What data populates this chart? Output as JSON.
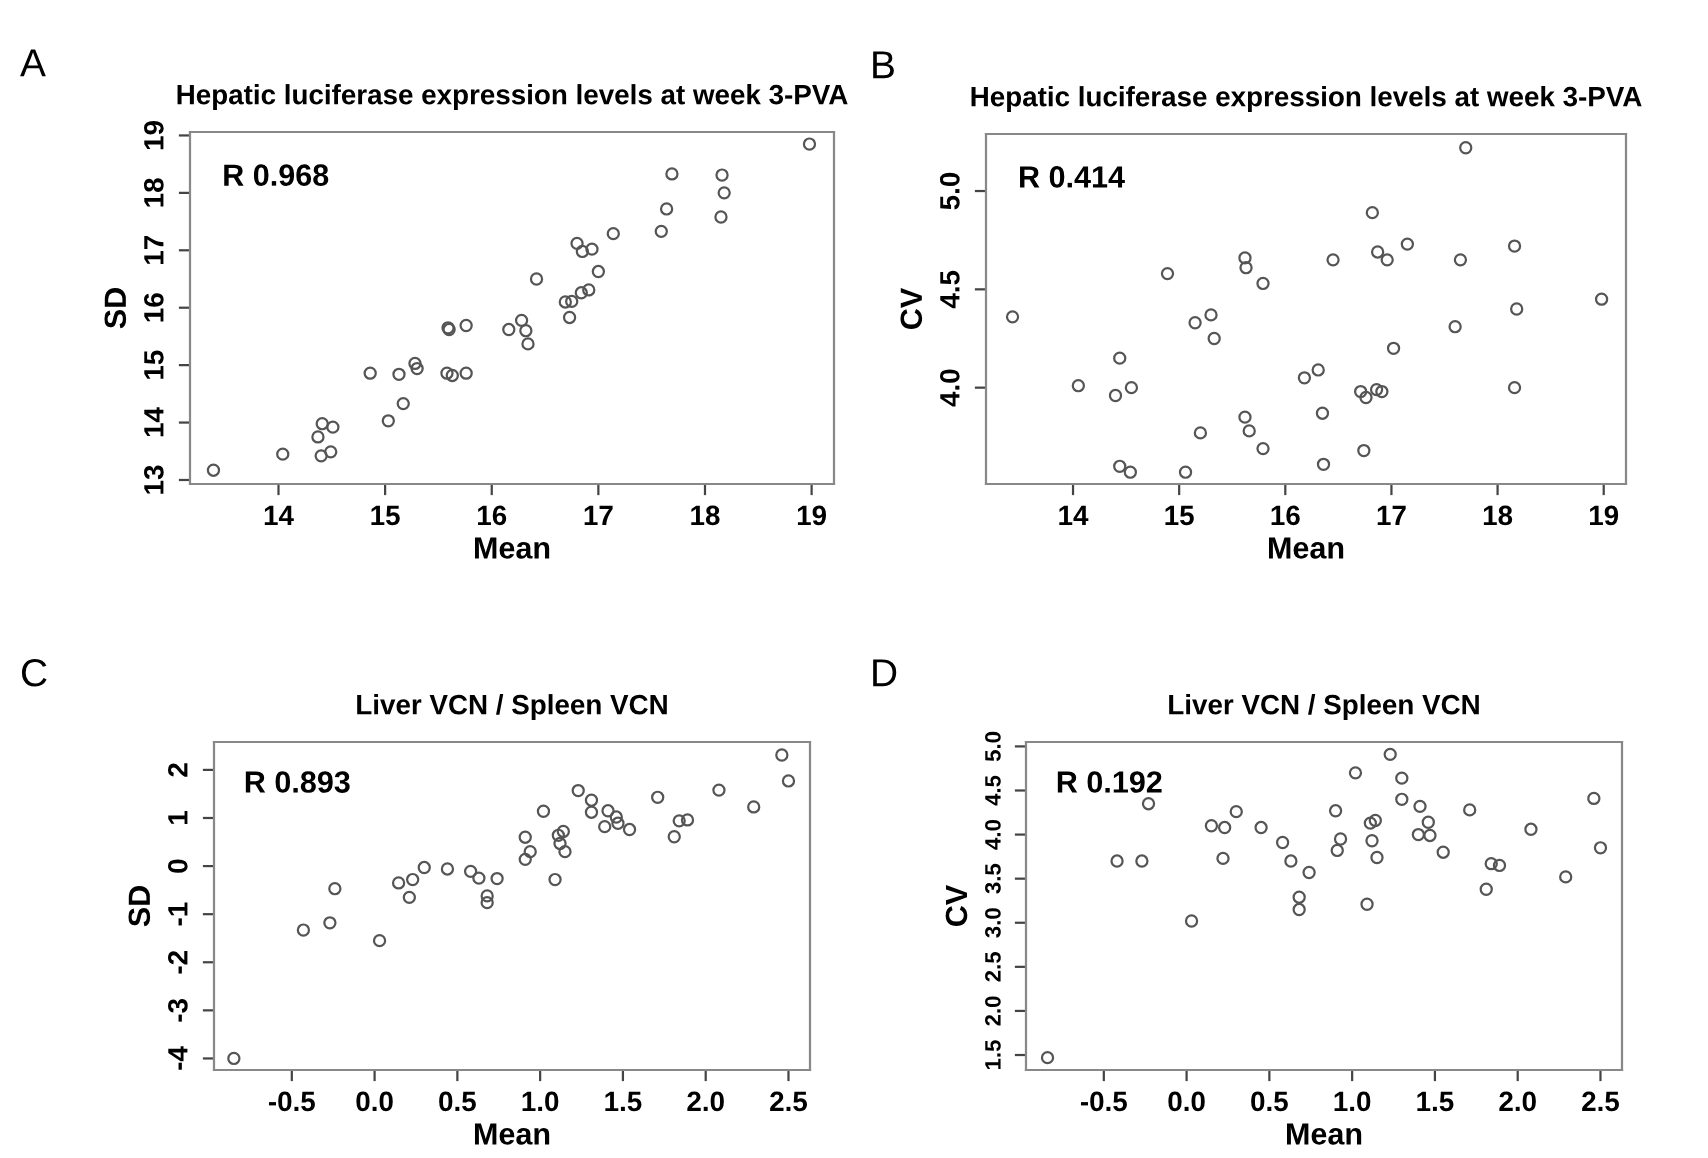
{
  "chart_data": [
    {
      "type": "scatter",
      "title": "Hepatic luciferase expression levels at week 3-PVA",
      "xlabel": "Mean",
      "ylabel": "SD",
      "annotations": [
        "A",
        "R 0.968"
      ],
      "marker": "circle",
      "grid": false,
      "xlim": [
        13.17,
        19.21
      ],
      "ylim": [
        12.93,
        19.06
      ],
      "xticks": [
        14,
        15,
        16,
        17,
        18,
        19
      ],
      "yticks": [
        13,
        14,
        15,
        16,
        17,
        18,
        19
      ],
      "series": [
        {
          "color": "#555555",
          "x": [
            13.39,
            14.04,
            14.37,
            14.41,
            14.51,
            14.4,
            14.49,
            14.86,
            15.03,
            15.13,
            15.17,
            15.28,
            15.3,
            15.59,
            15.6,
            15.58,
            15.63,
            15.76,
            15.76,
            16.16,
            16.28,
            16.32,
            16.34,
            16.42,
            16.69,
            16.75,
            16.73,
            16.8,
            16.85,
            16.94,
            16.84,
            16.91,
            17.0,
            17.14,
            17.59,
            17.64,
            17.69,
            18.16,
            18.18,
            18.15,
            18.98
          ],
          "values": [
            13.17,
            13.45,
            13.75,
            13.98,
            13.92,
            13.42,
            13.49,
            14.86,
            14.03,
            14.84,
            14.33,
            15.03,
            14.94,
            15.65,
            15.62,
            14.86,
            14.82,
            15.69,
            14.86,
            15.62,
            15.78,
            15.6,
            15.37,
            16.5,
            16.1,
            16.11,
            15.83,
            17.12,
            16.98,
            17.02,
            16.26,
            16.31,
            16.63,
            17.29,
            17.33,
            17.72,
            18.33,
            18.31,
            18.0,
            17.58,
            18.85
          ]
        }
      ]
    },
    {
      "type": "scatter",
      "title": "Hepatic luciferase expression levels at week 3-PVA",
      "xlabel": "Mean",
      "ylabel": "CV",
      "annotations": [
        "B",
        "R 0.414"
      ],
      "marker": "circle",
      "grid": false,
      "xlim": [
        13.18,
        19.21
      ],
      "ylim": [
        3.51,
        5.29
      ],
      "xticks": [
        14,
        15,
        16,
        17,
        18,
        19
      ],
      "yticks": [
        {
          "value": 4,
          "label": "4.0"
        },
        4.5,
        {
          "value": 5,
          "label": "5.0"
        }
      ],
      "series": [
        {
          "color": "#555555",
          "x": [
            13.43,
            14.05,
            14.4,
            14.44,
            14.55,
            14.44,
            14.54,
            14.89,
            15.06,
            15.15,
            15.2,
            15.3,
            15.33,
            15.62,
            15.63,
            15.62,
            15.66,
            15.79,
            15.79,
            16.18,
            16.31,
            16.35,
            16.36,
            16.45,
            16.71,
            16.76,
            16.74,
            16.82,
            16.87,
            16.96,
            16.86,
            16.91,
            17.02,
            17.15,
            17.6,
            17.65,
            17.7,
            18.16,
            18.18,
            18.16,
            18.98
          ],
          "values": [
            4.36,
            4.01,
            3.96,
            4.15,
            4.0,
            3.6,
            3.57,
            4.58,
            3.57,
            4.33,
            3.77,
            4.37,
            4.25,
            4.66,
            4.61,
            3.85,
            3.78,
            4.53,
            3.69,
            4.05,
            4.09,
            3.87,
            3.61,
            4.65,
            3.98,
            3.95,
            3.68,
            4.89,
            4.69,
            4.65,
            3.99,
            3.98,
            4.2,
            4.73,
            4.31,
            4.65,
            5.22,
            4.72,
            4.4,
            4.0,
            4.45
          ]
        }
      ]
    },
    {
      "type": "scatter",
      "title": "Liver VCN / Spleen VCN",
      "xlabel": "Mean",
      "ylabel": "SD",
      "annotations": [
        "C",
        "R 0.893"
      ],
      "marker": "circle",
      "grid": false,
      "xlim": [
        -0.97,
        2.63
      ],
      "ylim": [
        -4.24,
        2.58
      ],
      "xticks": [
        -0.5,
        {
          "value": 0,
          "label": "0.0"
        },
        0.5,
        {
          "value": 1,
          "label": "1.0"
        },
        1.5,
        {
          "value": 2,
          "label": "2.0"
        },
        2.5
      ],
      "yticks": [
        -4,
        -3,
        -2,
        -1,
        0,
        1,
        2
      ],
      "series": [
        {
          "color": "#555555",
          "x": [
            -0.85,
            -0.43,
            -0.27,
            -0.24,
            0.03,
            0.145,
            0.21,
            0.23,
            0.3,
            0.44,
            0.58,
            0.63,
            0.68,
            0.68,
            0.74,
            0.91,
            0.91,
            0.94,
            1.02,
            1.09,
            1.11,
            1.12,
            1.14,
            1.15,
            1.23,
            1.31,
            1.31,
            1.39,
            1.41,
            1.46,
            1.47,
            1.54,
            1.71,
            1.81,
            1.84,
            1.89,
            2.08,
            2.29,
            2.46,
            2.5
          ],
          "values": [
            -4.0,
            -1.33,
            -1.18,
            -0.47,
            -1.55,
            -0.35,
            -0.65,
            -0.28,
            -0.03,
            -0.06,
            -0.11,
            -0.25,
            -0.62,
            -0.76,
            -0.26,
            0.6,
            0.14,
            0.3,
            1.14,
            -0.28,
            0.64,
            0.47,
            0.72,
            0.3,
            1.57,
            1.37,
            1.12,
            0.82,
            1.15,
            1.02,
            0.89,
            0.76,
            1.43,
            0.61,
            0.94,
            0.96,
            1.58,
            1.23,
            2.31,
            1.77
          ]
        }
      ]
    },
    {
      "type": "scatter",
      "title": "Liver VCN / Spleen VCN",
      "xlabel": "Mean",
      "ylabel": "CV",
      "annotations": [
        "D",
        "R 0.192"
      ],
      "marker": "circle",
      "grid": false,
      "xlim": [
        -0.97,
        2.63
      ],
      "ylim": [
        1.33,
        5.05
      ],
      "xticks": [
        -0.5,
        {
          "value": 0,
          "label": "0.0"
        },
        0.5,
        {
          "value": 1,
          "label": "1.0"
        },
        1.5,
        {
          "value": 2,
          "label": "2.0"
        },
        2.5
      ],
      "yticks": [
        1.5,
        {
          "value": 2,
          "label": "2.0"
        },
        2.5,
        {
          "value": 3,
          "label": "3.0"
        },
        3.5,
        {
          "value": 4,
          "label": "4.0"
        },
        4.5,
        {
          "value": 5,
          "label": "5.0"
        }
      ],
      "series": [
        {
          "color": "#555555",
          "x": [
            -0.84,
            -0.42,
            -0.27,
            -0.23,
            0.03,
            0.15,
            0.23,
            0.22,
            0.3,
            0.45,
            0.58,
            0.63,
            0.74,
            0.68,
            0.68,
            0.9,
            0.91,
            0.93,
            1.02,
            1.09,
            1.11,
            1.12,
            1.14,
            1.15,
            1.23,
            1.3,
            1.3,
            1.4,
            1.41,
            1.46,
            1.47,
            1.55,
            1.71,
            1.81,
            1.84,
            1.89,
            2.08,
            2.29,
            2.46,
            2.5
          ],
          "values": [
            1.47,
            3.7,
            3.7,
            4.35,
            3.02,
            4.1,
            4.08,
            3.73,
            4.26,
            4.08,
            3.91,
            3.7,
            3.57,
            3.29,
            3.15,
            4.27,
            3.82,
            3.95,
            4.7,
            3.21,
            4.13,
            3.93,
            4.16,
            3.74,
            4.91,
            4.64,
            4.4,
            4.0,
            4.32,
            4.14,
            3.99,
            3.8,
            4.28,
            3.38,
            3.67,
            3.65,
            4.06,
            3.52,
            4.41,
            3.85
          ]
        }
      ]
    }
  ]
}
